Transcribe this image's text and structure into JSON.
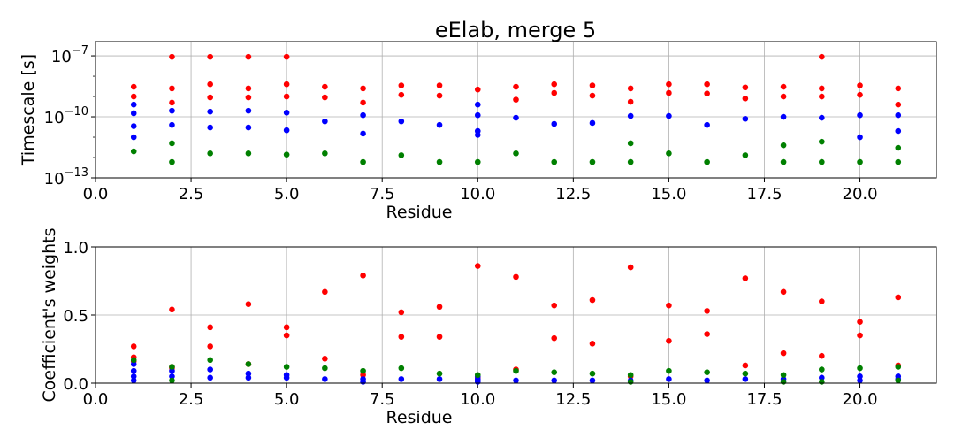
{
  "figure_title": "eElab, merge 5",
  "chart_data": [
    {
      "type": "scatter",
      "title": "eElab, merge 5",
      "xlabel": "Residue",
      "ylabel": "Timescale [s]",
      "xlim": [
        0,
        22
      ],
      "ylim": [
        1e-13,
        5e-07
      ],
      "yscale": "log",
      "grid": true,
      "xticks": [
        "0.0",
        "2.5",
        "5.0",
        "7.5",
        "10.0",
        "12.5",
        "15.0",
        "17.5",
        "20.0"
      ],
      "yticks": [
        {
          "base": "10",
          "exp": "−7"
        },
        {
          "base": "10",
          "exp": "−10"
        },
        {
          "base": "10",
          "exp": "−13"
        }
      ],
      "series": [
        {
          "color": "#ff0000",
          "points": [
            [
              1,
              3e-09
            ],
            [
              1,
              1e-09
            ],
            [
              2,
              9e-08
            ],
            [
              2,
              2.5e-09
            ],
            [
              2,
              5e-10
            ],
            [
              3,
              9e-08
            ],
            [
              3,
              4e-09
            ],
            [
              3,
              9e-10
            ],
            [
              4,
              9e-08
            ],
            [
              4,
              2.5e-09
            ],
            [
              4,
              9e-10
            ],
            [
              5,
              9e-08
            ],
            [
              5,
              4e-09
            ],
            [
              5,
              1e-09
            ],
            [
              6,
              3e-09
            ],
            [
              6,
              9e-10
            ],
            [
              7,
              2.5e-09
            ],
            [
              7,
              5e-10
            ],
            [
              8,
              3.5e-09
            ],
            [
              8,
              1.2e-09
            ],
            [
              9,
              3.5e-09
            ],
            [
              9,
              1.1e-09
            ],
            [
              10,
              2.2e-09
            ],
            [
              11,
              3e-09
            ],
            [
              11,
              7e-10
            ],
            [
              12,
              4e-09
            ],
            [
              12,
              1.5e-09
            ],
            [
              13,
              3.5e-09
            ],
            [
              13,
              1.1e-09
            ],
            [
              14,
              2.5e-09
            ],
            [
              14,
              5.5e-10
            ],
            [
              15,
              4e-09
            ],
            [
              15,
              1.5e-09
            ],
            [
              16,
              4e-09
            ],
            [
              16,
              1.4e-09
            ],
            [
              17,
              2.8e-09
            ],
            [
              17,
              8e-10
            ],
            [
              18,
              3e-09
            ],
            [
              18,
              1e-09
            ],
            [
              19,
              9e-08
            ],
            [
              19,
              2.5e-09
            ],
            [
              19,
              1e-09
            ],
            [
              20,
              3.5e-09
            ],
            [
              20,
              1.2e-09
            ],
            [
              21,
              2.5e-09
            ],
            [
              21,
              4e-10
            ]
          ]
        },
        {
          "color": "#0000ff",
          "points": [
            [
              1,
              4e-10
            ],
            [
              1,
              1.5e-10
            ],
            [
              1,
              3.5e-11
            ],
            [
              1,
              1e-11
            ],
            [
              2,
              2e-10
            ],
            [
              2,
              4e-11
            ],
            [
              3,
              1.8e-10
            ],
            [
              3,
              3e-11
            ],
            [
              4,
              2e-10
            ],
            [
              4,
              3e-11
            ],
            [
              5,
              1.6e-10
            ],
            [
              5,
              2.2e-11
            ],
            [
              6,
              6e-11
            ],
            [
              7,
              1.2e-10
            ],
            [
              7,
              1.5e-11
            ],
            [
              8,
              6e-11
            ],
            [
              9,
              4e-11
            ],
            [
              10,
              4e-10
            ],
            [
              10,
              1.2e-10
            ],
            [
              10,
              2e-11
            ],
            [
              10,
              1.3e-11
            ],
            [
              11,
              9e-11
            ],
            [
              12,
              4.5e-11
            ],
            [
              13,
              5e-11
            ],
            [
              14,
              1.1e-10
            ],
            [
              15,
              1.1e-10
            ],
            [
              16,
              4e-11
            ],
            [
              17,
              8e-11
            ],
            [
              18,
              1e-10
            ],
            [
              19,
              9e-11
            ],
            [
              20,
              1.2e-10
            ],
            [
              20,
              1e-11
            ],
            [
              21,
              1.2e-10
            ],
            [
              21,
              2e-11
            ]
          ]
        },
        {
          "color": "#008000",
          "points": [
            [
              1,
              2e-12
            ],
            [
              2,
              5e-12
            ],
            [
              2,
              6e-13
            ],
            [
              3,
              1.6e-12
            ],
            [
              4,
              1.6e-12
            ],
            [
              5,
              1.4e-12
            ],
            [
              6,
              1.6e-12
            ],
            [
              7,
              6e-13
            ],
            [
              8,
              1.3e-12
            ],
            [
              9,
              6e-13
            ],
            [
              10,
              6e-13
            ],
            [
              11,
              1.6e-12
            ],
            [
              12,
              6e-13
            ],
            [
              13,
              6e-13
            ],
            [
              14,
              5e-12
            ],
            [
              14,
              6e-13
            ],
            [
              15,
              1.6e-12
            ],
            [
              16,
              6e-13
            ],
            [
              17,
              1.3e-12
            ],
            [
              18,
              4e-12
            ],
            [
              18,
              6e-13
            ],
            [
              19,
              6e-12
            ],
            [
              19,
              6e-13
            ],
            [
              20,
              6e-13
            ],
            [
              21,
              3e-12
            ],
            [
              21,
              6e-13
            ]
          ]
        }
      ]
    },
    {
      "type": "scatter",
      "title": "",
      "xlabel": "Residue",
      "ylabel": "Coefficient's weights",
      "xlim": [
        0,
        22
      ],
      "ylim": [
        0,
        1
      ],
      "yscale": "linear",
      "grid": true,
      "xticks": [
        "0.0",
        "2.5",
        "5.0",
        "7.5",
        "10.0",
        "12.5",
        "15.0",
        "17.5",
        "20.0"
      ],
      "yticks": [
        "0.0",
        "0.5",
        "1.0"
      ],
      "series": [
        {
          "color": "#ff0000",
          "points": [
            [
              1,
              0.27
            ],
            [
              1,
              0.19
            ],
            [
              1,
              0.16
            ],
            [
              2,
              0.54
            ],
            [
              2,
              0.12
            ],
            [
              2,
              0.11
            ],
            [
              3,
              0.41
            ],
            [
              3,
              0.27
            ],
            [
              4,
              0.58
            ],
            [
              4,
              0.14
            ],
            [
              5,
              0.41
            ],
            [
              5,
              0.35
            ],
            [
              6,
              0.67
            ],
            [
              6,
              0.18
            ],
            [
              7,
              0.79
            ],
            [
              7,
              0.06
            ],
            [
              8,
              0.52
            ],
            [
              8,
              0.34
            ],
            [
              9,
              0.56
            ],
            [
              9,
              0.34
            ],
            [
              10,
              0.86
            ],
            [
              10,
              0.04
            ],
            [
              11,
              0.78
            ],
            [
              11,
              0.1
            ],
            [
              12,
              0.57
            ],
            [
              12,
              0.33
            ],
            [
              13,
              0.61
            ],
            [
              13,
              0.29
            ],
            [
              14,
              0.85
            ],
            [
              14,
              0.05
            ],
            [
              15,
              0.57
            ],
            [
              15,
              0.31
            ],
            [
              16,
              0.53
            ],
            [
              16,
              0.36
            ],
            [
              17,
              0.77
            ],
            [
              17,
              0.13
            ],
            [
              18,
              0.67
            ],
            [
              18,
              0.22
            ],
            [
              19,
              0.6
            ],
            [
              19,
              0.2
            ],
            [
              20,
              0.45
            ],
            [
              20,
              0.35
            ],
            [
              21,
              0.63
            ],
            [
              21,
              0.13
            ]
          ]
        },
        {
          "color": "#0000ff",
          "points": [
            [
              1,
              0.14
            ],
            [
              1,
              0.09
            ],
            [
              1,
              0.05
            ],
            [
              1,
              0.02
            ],
            [
              2,
              0.09
            ],
            [
              2,
              0.05
            ],
            [
              3,
              0.1
            ],
            [
              3,
              0.04
            ],
            [
              4,
              0.07
            ],
            [
              4,
              0.04
            ],
            [
              5,
              0.06
            ],
            [
              5,
              0.04
            ],
            [
              6,
              0.03
            ],
            [
              7,
              0.03
            ],
            [
              7,
              0.01
            ],
            [
              8,
              0.03
            ],
            [
              9,
              0.03
            ],
            [
              10,
              0.05
            ],
            [
              10,
              0.03
            ],
            [
              10,
              0.02
            ],
            [
              10,
              0.01
            ],
            [
              11,
              0.02
            ],
            [
              12,
              0.02
            ],
            [
              13,
              0.02
            ],
            [
              14,
              0.02
            ],
            [
              15,
              0.03
            ],
            [
              16,
              0.02
            ],
            [
              17,
              0.03
            ],
            [
              18,
              0.03
            ],
            [
              19,
              0.04
            ],
            [
              20,
              0.05
            ],
            [
              20,
              0.02
            ],
            [
              21,
              0.05
            ],
            [
              21,
              0.03
            ]
          ]
        },
        {
          "color": "#008000",
          "points": [
            [
              1,
              0.17
            ],
            [
              2,
              0.12
            ],
            [
              2,
              0.02
            ],
            [
              3,
              0.17
            ],
            [
              4,
              0.14
            ],
            [
              5,
              0.12
            ],
            [
              6,
              0.11
            ],
            [
              7,
              0.09
            ],
            [
              8,
              0.11
            ],
            [
              9,
              0.07
            ],
            [
              10,
              0.06
            ],
            [
              11,
              0.09
            ],
            [
              12,
              0.08
            ],
            [
              13,
              0.07
            ],
            [
              14,
              0.06
            ],
            [
              14,
              0.01
            ],
            [
              15,
              0.09
            ],
            [
              16,
              0.08
            ],
            [
              17,
              0.07
            ],
            [
              18,
              0.06
            ],
            [
              18,
              0.01
            ],
            [
              19,
              0.1
            ],
            [
              19,
              0.01
            ],
            [
              20,
              0.11
            ],
            [
              21,
              0.12
            ],
            [
              21,
              0.02
            ]
          ]
        }
      ]
    }
  ]
}
